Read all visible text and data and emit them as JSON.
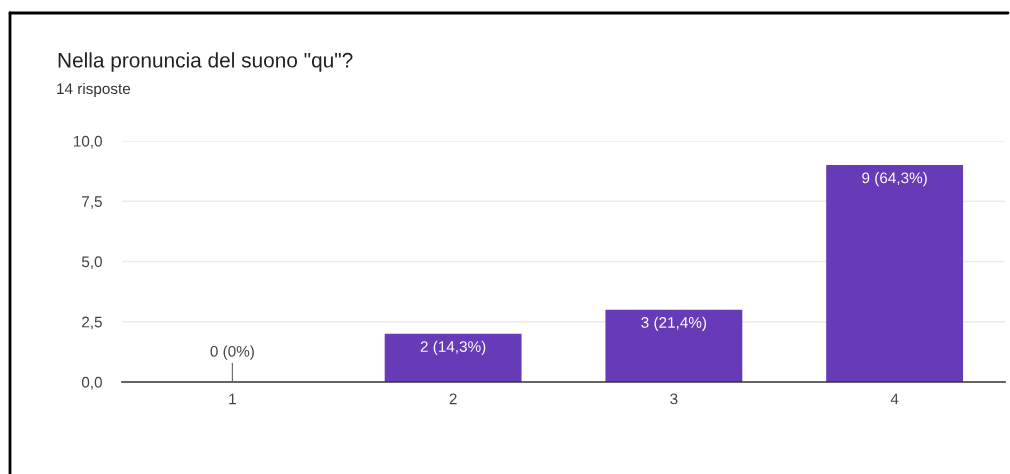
{
  "chart_data": {
    "type": "bar",
    "title": "Nella pronuncia del suono \"qu\"?",
    "subtitle": "14 risposte",
    "categories": [
      "1",
      "2",
      "3",
      "4"
    ],
    "values": [
      0,
      2,
      3,
      9
    ],
    "color": "#673ab7",
    "value_labels": [
      "0 (0%)",
      "2 (14,3%)",
      "3 (21,4%)",
      "9 (64,3%)"
    ],
    "ylim": [
      0,
      10
    ],
    "yticks": [
      {
        "value": 0,
        "label": "0,0"
      },
      {
        "value": 2.5,
        "label": "2,5"
      },
      {
        "value": 5,
        "label": "5,0"
      },
      {
        "value": 7.5,
        "label": "7,5"
      },
      {
        "value": 10,
        "label": "10,0"
      }
    ],
    "grid": "y"
  }
}
